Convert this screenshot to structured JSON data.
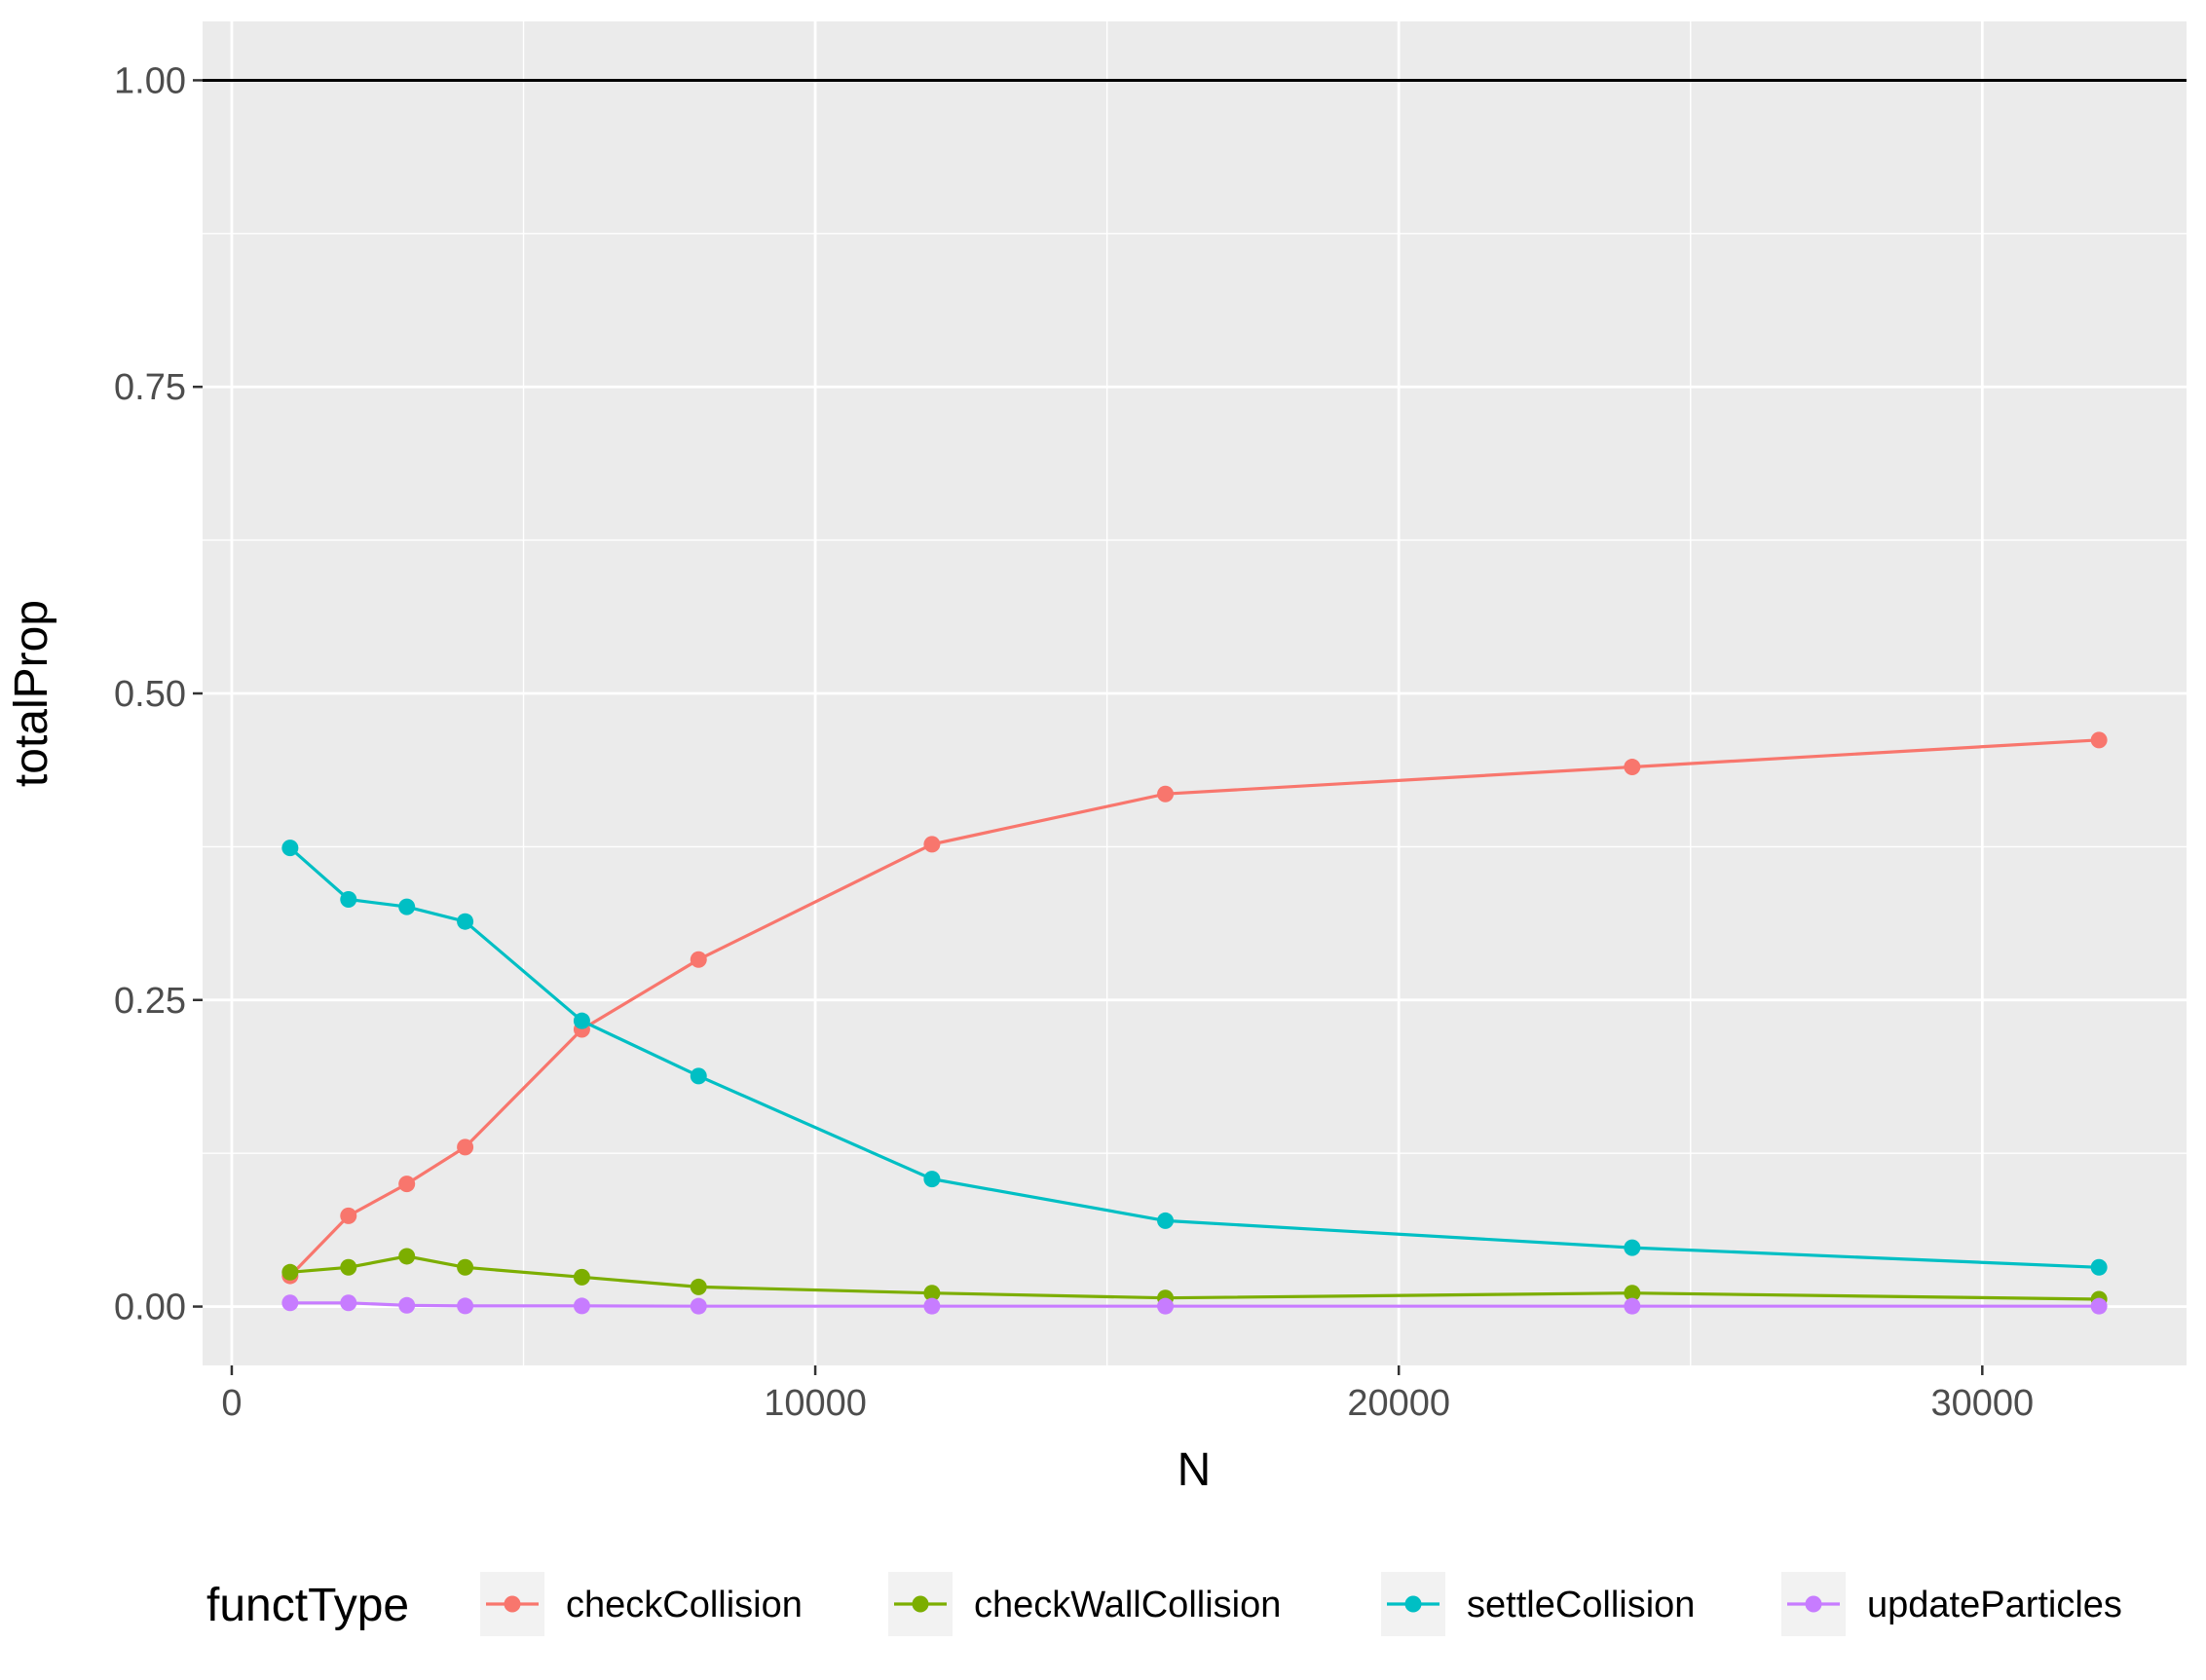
{
  "chart_data": {
    "type": "line",
    "title": "",
    "xlabel": "N",
    "ylabel": "totalProp",
    "xlim": [
      -500,
      33500
    ],
    "ylim": [
      -0.048,
      1.048
    ],
    "x_ticks": [
      0,
      10000,
      20000,
      30000
    ],
    "x_tick_labels": [
      "0",
      "10000",
      "20000",
      "30000"
    ],
    "y_ticks": [
      0,
      0.25,
      0.5,
      0.75,
      1.0
    ],
    "y_tick_labels": [
      "0.00",
      "0.25",
      "0.50",
      "0.75",
      "1.00"
    ],
    "grid": true,
    "reference_line": {
      "y": 1.0,
      "color": "#000000"
    },
    "legend": {
      "title": "functType",
      "position": "bottom"
    },
    "x": [
      1000,
      2000,
      3000,
      4000,
      6000,
      8000,
      12000,
      16000,
      24000,
      32000
    ],
    "series": [
      {
        "name": "checkCollision",
        "color": "#F8766D",
        "values": [
          0.025,
          0.074,
          0.1,
          0.13,
          0.226,
          0.283,
          0.377,
          0.418,
          0.44,
          0.462
        ]
      },
      {
        "name": "checkWallCollision",
        "color": "#7CAE00",
        "values": [
          0.028,
          0.032,
          0.041,
          0.032,
          0.024,
          0.016,
          0.011,
          0.007,
          0.011,
          0.006
        ]
      },
      {
        "name": "settleCollision",
        "color": "#00BFC4",
        "values": [
          0.374,
          0.332,
          0.326,
          0.314,
          0.233,
          0.188,
          0.104,
          0.07,
          0.048,
          0.032
        ]
      },
      {
        "name": "updateParticles",
        "color": "#C77CFF",
        "values": [
          0.003,
          0.003,
          0.001,
          0.0005,
          0.0005,
          0.0003,
          0.0003,
          0.0003,
          0.0003,
          0.0003
        ]
      }
    ]
  }
}
